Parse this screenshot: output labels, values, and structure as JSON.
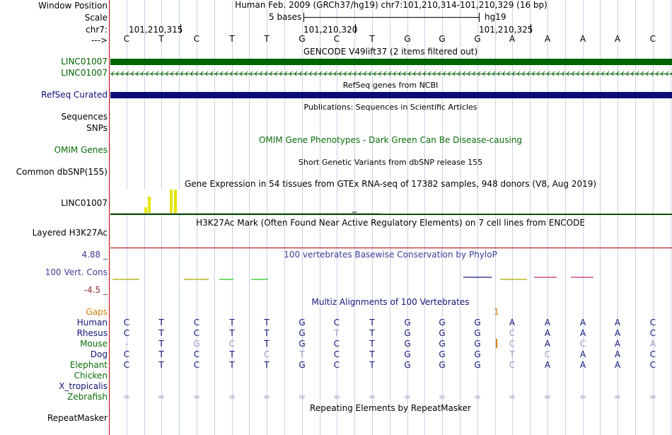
{
  "header": {
    "window_position_label": "Window Position",
    "scale_label": "Scale",
    "chr_label": "chr7:",
    "arrow_label": "--->",
    "assembly_title": "Human Feb. 2009 (GRCh37/hg19)   chr7:101,210,314-101,210,329 (16 bp)",
    "scale_text": "5 bases",
    "db_name": "hg19",
    "coords": [
      "101,210,315",
      "101,210,320",
      "101,210,325"
    ]
  },
  "reference_bases": [
    "C",
    "T",
    "C",
    "T",
    "T",
    "G",
    "C",
    "T",
    "G",
    "G",
    "G",
    "A",
    "A",
    "A",
    "A",
    "C"
  ],
  "colors": {
    "gencode": "#006400",
    "refseq": "#0c0c78",
    "omim": "#0a6e0a",
    "phylop": "#3c3c96",
    "phylop_neg": "#8c2d2d",
    "gaps": "#d2820a",
    "gtex": "#e6e600",
    "h3k": "#a00000"
  },
  "tracks": {
    "gencode_title": "GENCODE V49lift37 (2 items filtered out)",
    "gencode_items": [
      "LINC01007",
      "LINC01007"
    ],
    "refseq_title": "RefSeq genes from NCBI",
    "refseq_label": "RefSeq Curated",
    "publications_title": "Publications: Sequences in Scientific Articles",
    "sequences_label": "Sequences",
    "snps_label": "SNPs",
    "omim_title": "OMIM Gene Phenotypes - Dark Green Can Be Disease-causing",
    "omim_label": "OMIM Genes",
    "dbsnp_title": "Short Genetic Variants from dbSNP release 155",
    "dbsnp_label": "Common dbSNP(155)",
    "gtex_title": "Gene Expression in 54 tissues from GTEx RNA-seq of 17382 samples, 948 donors (V8, Aug 2019)",
    "gtex_label": "LINC01007",
    "h3k_title": "H3K27Ac Mark (Often Found Near Active Regulatory Elements) on 7 cell lines from ENCODE",
    "h3k_label": "Layered H3K27Ac",
    "phylop_title": "100 vertebrates Basewise Conservation by PhyloP",
    "phylop_label": "100 Vert. Cons",
    "phylop_max": "4.88 _",
    "phylop_min": "-4.5 _",
    "multiz_title": "Multiz Alignments of 100 Vertebrates",
    "gaps_label": "Gaps",
    "gaps_mark": "1",
    "repeat_title": "Repeating Elements by RepeatMasker",
    "repeat_label": "RepeatMasker"
  },
  "alignments": [
    {
      "species": "Human",
      "bases": [
        "C",
        "T",
        "C",
        "T",
        "T",
        "G",
        "C",
        "T",
        "G",
        "G",
        "G",
        "A",
        "A",
        "A",
        "A",
        "C"
      ]
    },
    {
      "species": "Rhesus",
      "bases": [
        "C",
        "T",
        "C",
        "T",
        "T",
        "G",
        "T",
        "T",
        "G",
        "G",
        "G",
        "C",
        "A",
        "A",
        "A",
        "C"
      ]
    },
    {
      "species": "Mouse",
      "bases": [
        "-",
        "T",
        "G",
        "C",
        "T",
        "G",
        "C",
        "T",
        "G",
        "G",
        "G",
        "C",
        "A",
        "C",
        "A",
        "A"
      ]
    },
    {
      "species": "Dog",
      "bases": [
        "C",
        "T",
        "C",
        "T",
        "C",
        "T",
        "C",
        "T",
        "G",
        "G",
        "G",
        "T",
        "C",
        "A",
        "A",
        "C"
      ]
    },
    {
      "species": "Elephant",
      "bases": [
        "C",
        "T",
        "C",
        "T",
        "T",
        "G",
        "C",
        "T",
        "G",
        "G",
        "G",
        "C",
        "A",
        "A",
        "A",
        "C"
      ]
    },
    {
      "species": "Chicken",
      "bases": []
    },
    {
      "species": "X_tropicalis",
      "bases": []
    },
    {
      "species": "Zebrafish",
      "bases": [
        "=",
        "=",
        "=",
        "=",
        "=",
        "=",
        "=",
        "=",
        "=",
        "=",
        "=",
        "=",
        "=",
        "=",
        "=",
        "="
      ]
    }
  ]
}
